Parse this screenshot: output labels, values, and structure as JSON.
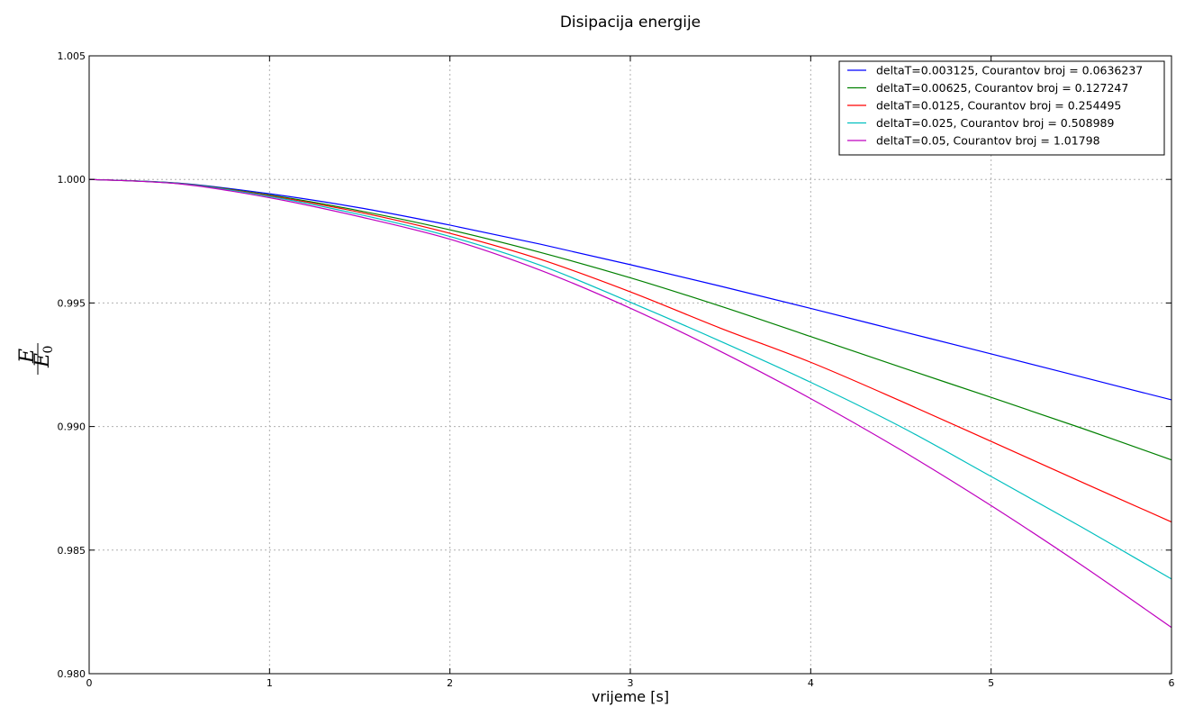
{
  "chart_data": {
    "type": "line",
    "title": "Disipacija energije",
    "xlabel": "vrijeme [s]",
    "ylabel": {
      "main": "E",
      "denominator": "E",
      "subscript": "0"
    },
    "xlim": [
      0,
      6
    ],
    "ylim": [
      0.98,
      1.005
    ],
    "x_ticks": [
      "0",
      "1",
      "2",
      "3",
      "4",
      "5",
      "6"
    ],
    "y_ticks": [
      "0.980",
      "0.985",
      "0.990",
      "0.995",
      "1.000",
      "1.005"
    ],
    "grid": true,
    "legend_position": "top-right",
    "x": [
      0,
      0.5,
      1,
      1.5,
      2,
      2.5,
      3,
      3.5,
      4,
      4.5,
      5,
      5.5,
      6
    ],
    "series": [
      {
        "name": "deltaT=0.003125, Courantov broj = 0.0636237",
        "color": "#0000ff",
        "values": [
          1.0,
          0.99985,
          0.99942,
          0.99885,
          0.99815,
          0.99738,
          0.99655,
          0.99568,
          0.99478,
          0.99386,
          0.99294,
          0.99201,
          0.99108
        ]
      },
      {
        "name": "deltaT=0.00625, Courantov broj = 0.127247",
        "color": "#008000",
        "values": [
          1.0,
          0.99984,
          0.99937,
          0.99873,
          0.99796,
          0.99705,
          0.99602,
          0.99487,
          0.99364,
          0.9924,
          0.99118,
          0.98994,
          0.98865
        ]
      },
      {
        "name": "deltaT=0.0125, Courantov broj = 0.254495",
        "color": "#ff0000",
        "values": [
          1.0,
          0.99983,
          0.99934,
          0.99867,
          0.99782,
          0.99677,
          0.99545,
          0.99398,
          0.9926,
          0.99103,
          0.9894,
          0.98776,
          0.98614
        ]
      },
      {
        "name": "deltaT=0.025, Courantov broj = 0.508989",
        "color": "#00bfbf",
        "values": [
          1.0,
          0.99983,
          0.99931,
          0.99858,
          0.99769,
          0.99653,
          0.99503,
          0.99345,
          0.99179,
          0.98999,
          0.98798,
          0.98594,
          0.98383
        ]
      },
      {
        "name": "deltaT=0.05, Courantov broj = 1.01798",
        "color": "#bf00bf",
        "values": [
          1.0,
          0.99982,
          0.99926,
          0.99849,
          0.99758,
          0.99633,
          0.99479,
          0.99304,
          0.99113,
          0.98905,
          0.9868,
          0.9844,
          0.98187
        ]
      }
    ]
  }
}
